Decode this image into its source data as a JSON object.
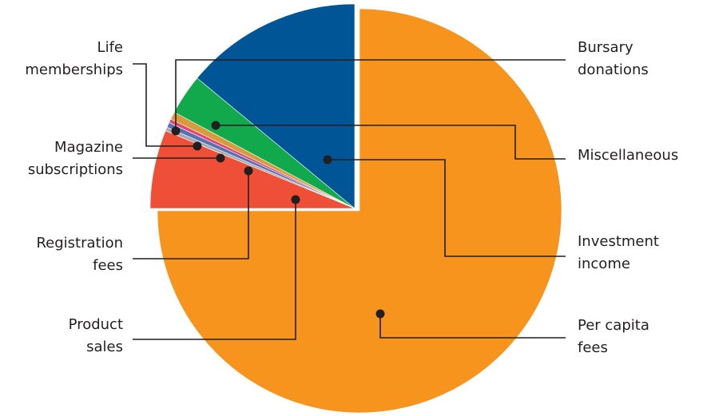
{
  "chart_data": {
    "type": "pie",
    "title": "",
    "series": [
      {
        "values": [
          {
            "label": "Per capita fees",
            "value": 75.0,
            "color": "#f7941d"
          },
          {
            "label": "Product sales",
            "value": 6.2,
            "color": "#ef4e37"
          },
          {
            "label": "Registration fees",
            "value": 0.3,
            "color": "#a7a9ac"
          },
          {
            "label": "Magazine subscriptions",
            "value": 0.4,
            "color": "#5b6fb5"
          },
          {
            "label": "Life memberships",
            "value": 0.3,
            "color": "#e2456e"
          },
          {
            "label": "Bursary donations",
            "value": 0.6,
            "color": "#d69b3a"
          },
          {
            "label": "Miscellaneous",
            "value": 3.2,
            "color": "#12a94d"
          },
          {
            "label": "Investment income",
            "value": 14.0,
            "color": "#005596"
          }
        ]
      }
    ],
    "start_angle_deg": 0,
    "direction": "clockwise",
    "exploded": [
      "Per capita fees"
    ],
    "legend": "none",
    "label_style": "outside labels with leader lines"
  },
  "labels": {
    "per_capita_fees": "Per capita\nfees",
    "investment_income": "Investment\nincome",
    "miscellaneous": "Miscellaneous",
    "bursary_donations": "Bursary\ndonations",
    "life_memberships": "Life\nmemberships",
    "magazine_subscriptions": "Magazine\nsubscriptions",
    "registration_fees": "Registration\nfees",
    "product_sales": "Product\nsales"
  },
  "colors": {
    "leader": "#231f20",
    "background": "#ffffff"
  }
}
